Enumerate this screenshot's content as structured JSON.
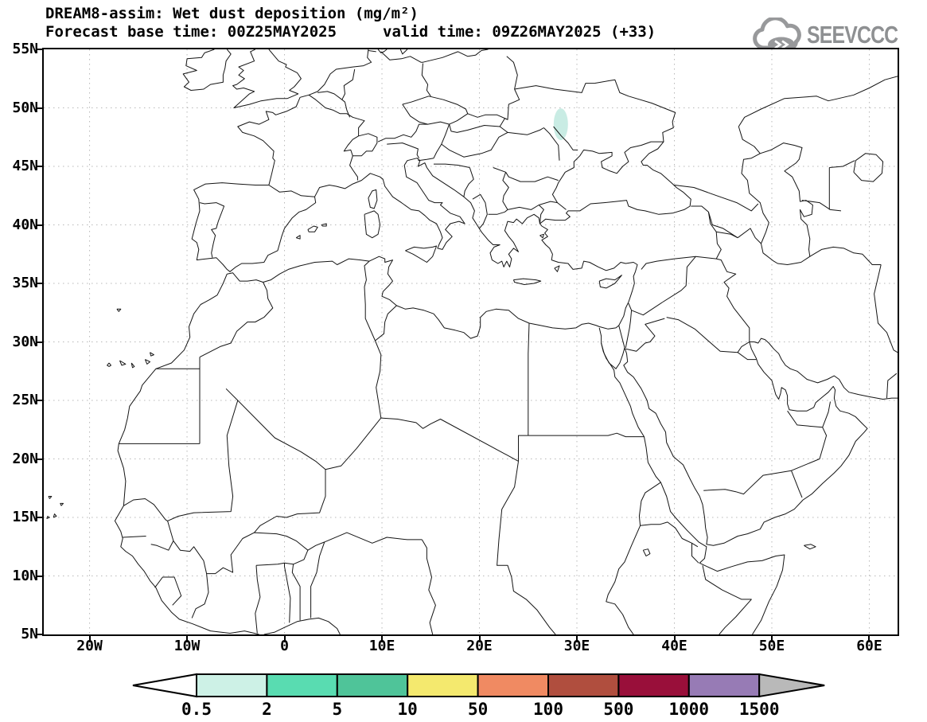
{
  "header": {
    "title": "DREAM8-assim: Wet dust deposition (mg/m²)",
    "forecast_base": "Forecast base time: 00Z25MAY2025",
    "valid_time": "valid time: 09Z26MAY2025 (+33)"
  },
  "logo": {
    "text": "SEEVCCC",
    "color": "#8e9092"
  },
  "axes": {
    "lat_labels": [
      "55N",
      "50N",
      "45N",
      "40N",
      "35N",
      "30N",
      "25N",
      "20N",
      "15N",
      "10N",
      "5N"
    ],
    "lat_values": [
      55,
      50,
      45,
      40,
      35,
      30,
      25,
      20,
      15,
      10,
      5
    ],
    "lon_labels": [
      "20W",
      "10W",
      "0",
      "10E",
      "20E",
      "30E",
      "40E",
      "50E",
      "60E"
    ],
    "lon_values": [
      -20,
      -10,
      0,
      10,
      20,
      30,
      40,
      50,
      60
    ],
    "lon_range": [
      -24.7,
      62.9
    ],
    "lat_range": [
      5,
      55
    ]
  },
  "colorbar": {
    "labels": [
      "0.5",
      "2",
      "5",
      "10",
      "50",
      "100",
      "500",
      "1000",
      "1500"
    ],
    "segment_colors": [
      "#cdf1e6",
      "#59dcb1",
      "#4fc499",
      "#f4e96e",
      "#f08a62",
      "#b04e3e",
      "#990f3a",
      "#977bb5"
    ],
    "underflow_color": "#ffffff",
    "overflow_color": "#b9b9b9",
    "outline_color": "#000000",
    "units": "mg/m²"
  },
  "map": {
    "grid_color": "#b8b8b8",
    "coast_color": "#141414",
    "frame_color": "#000000",
    "deposition_patch": {
      "lon": 28.35,
      "lat": 48.6,
      "color": "#c9ece4",
      "level": "0.5-2"
    }
  }
}
